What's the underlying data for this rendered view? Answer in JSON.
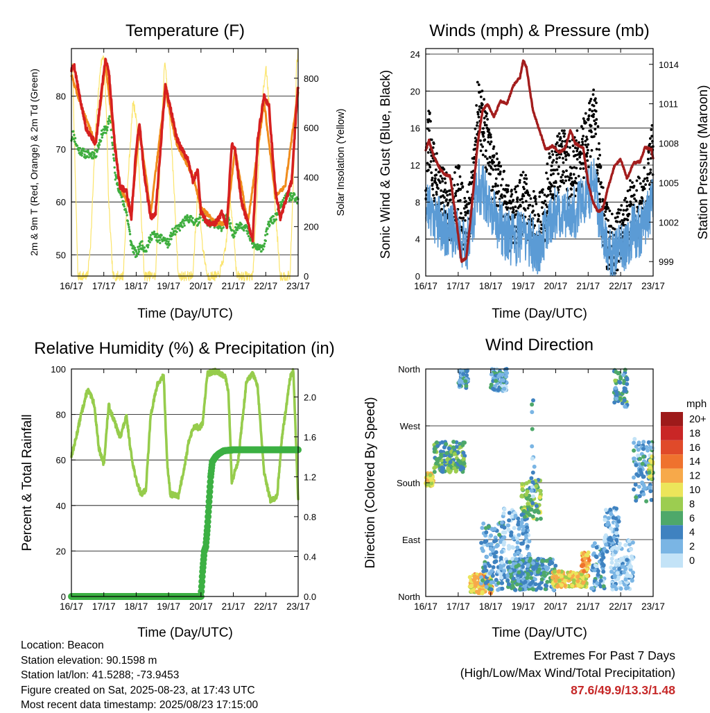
{
  "location": "Location: Beacon",
  "elevation": "Station elevation: 90.1598 m",
  "latlon": "Station lat/lon: 41.5288; -73.9453",
  "created": "Figure created on Sat, 2025-08-23, at 17:43 UTC",
  "recent": "Most recent data timestamp: 2025/08/23 17:15:00",
  "extremes": {
    "title": "Extremes For Past 7 Days",
    "subtitle": "(High/Low/Max Wind/Total Precipitation)",
    "values": "87.6/49.9/13.3/1.48"
  },
  "colors": {
    "temp2m": "#d62020",
    "temp9m": "#f08c1c",
    "dewpoint": "#3fae3f",
    "solar": "#fbe46a",
    "wind": "#5b9bd5",
    "gust": "#000000",
    "pressure": "#a31d1d",
    "rh": "#96cc4c",
    "precip": "#3cb043"
  },
  "speed_scale": {
    "label": "mph",
    "labels": [
      "20+",
      "18",
      "16",
      "14",
      "12",
      "10",
      "8",
      "6",
      "4",
      "2",
      "0"
    ],
    "colors": [
      "#9e1a1a",
      "#c92626",
      "#e04a2a",
      "#ef722e",
      "#f7a94a",
      "#ece55a",
      "#9ccd50",
      "#4ea86a",
      "#3f82c0",
      "#7ab5e4",
      "#c3e3f7"
    ]
  },
  "chart_data": [
    {
      "type": "line",
      "title": "Temperature (F)",
      "xlabel": "Time (Day/UTC)",
      "ylabel": "2m & 9m T (Red, Orange) & 2m Td (Green)",
      "y2label": "Solar Insolation (Yellow)",
      "x_ticks": [
        "16/17",
        "17/17",
        "18/17",
        "19/17",
        "20/17",
        "21/17",
        "22/17",
        "23/17"
      ],
      "xlim": [
        0,
        7
      ],
      "ylim": [
        46,
        89
      ],
      "y_ticks": [
        50,
        60,
        70,
        80
      ],
      "y2lim": [
        0,
        920
      ],
      "y2_ticks": [
        0,
        200,
        400,
        600,
        800
      ],
      "grid": true,
      "series": [
        {
          "name": "2m T",
          "x": [
            0,
            0.08,
            0.25,
            0.45,
            0.75,
            0.95,
            1.05,
            1.15,
            1.35,
            1.5,
            1.7,
            1.85,
            2.0,
            2.1,
            2.25,
            2.45,
            2.6,
            2.75,
            2.9,
            3.05,
            3.25,
            3.4,
            3.6,
            3.75,
            3.9,
            4.0,
            4.2,
            4.45,
            4.65,
            4.8,
            4.95,
            5.05,
            5.25,
            5.45,
            5.6,
            5.75,
            5.95,
            6.1,
            6.3,
            6.45,
            6.6,
            6.8,
            6.95,
            7.0
          ],
          "y": [
            85,
            86,
            80,
            74,
            71,
            82,
            87,
            85,
            70,
            63,
            62,
            57,
            70,
            75,
            65,
            57,
            58,
            70,
            82,
            78,
            72,
            70,
            68,
            64,
            66,
            58,
            56,
            56,
            58,
            55,
            71,
            70,
            60,
            56,
            53,
            72,
            80,
            78,
            62,
            57,
            60,
            64,
            78,
            82
          ]
        },
        {
          "name": "9m T",
          "x": [
            0,
            0.25,
            0.75,
            1.05,
            1.5,
            1.85,
            2.1,
            2.45,
            2.9,
            3.25,
            3.75,
            4.0,
            4.45,
            4.8,
            5.05,
            5.45,
            5.95,
            6.3,
            6.6,
            7.0
          ],
          "y": [
            84,
            79,
            71,
            86,
            63,
            58,
            74,
            58,
            81,
            71,
            65,
            59,
            56,
            56,
            70,
            56,
            79,
            61,
            63,
            81
          ]
        },
        {
          "name": "2m Td",
          "x": [
            0,
            0.05,
            0.2,
            0.45,
            0.75,
            0.95,
            1.1,
            1.2,
            1.35,
            1.55,
            1.7,
            1.85,
            2.0,
            2.15,
            2.3,
            2.5,
            2.7,
            2.85,
            3.0,
            3.1,
            3.3,
            3.6,
            3.9,
            4.0,
            4.2,
            4.4,
            4.6,
            4.8,
            5.0,
            5.2,
            5.4,
            5.6,
            5.8,
            5.95,
            6.1,
            6.3,
            6.45,
            6.65,
            6.85,
            7.0
          ],
          "y": [
            72,
            73,
            70,
            69,
            69,
            73,
            74,
            76,
            65,
            61,
            58,
            52,
            50,
            52,
            51,
            54,
            53,
            53,
            52,
            54,
            55,
            57,
            56,
            58,
            56,
            56,
            55,
            57,
            54,
            56,
            55,
            52,
            51,
            52,
            56,
            57,
            59,
            61,
            61,
            60
          ]
        },
        {
          "name": "Solar",
          "axis": "y2",
          "x": [
            0,
            0.04,
            0.1,
            0.2,
            0.35,
            0.5,
            0.6,
            0.75,
            0.9,
            1.0,
            1.08,
            1.15,
            1.28,
            1.45,
            1.6,
            1.75,
            1.9,
            2.0,
            2.1,
            2.25,
            2.45,
            2.6,
            2.75,
            2.88,
            3.0,
            3.15,
            3.3,
            3.6,
            3.75,
            3.9,
            4.05,
            4.2,
            4.35,
            4.55,
            4.75,
            4.9,
            5.0,
            5.1,
            5.25,
            5.45,
            5.6,
            5.72,
            5.85,
            6.0,
            6.1,
            6.25,
            6.45,
            6.6,
            6.75,
            6.88,
            6.95,
            7.0
          ],
          "y": [
            820,
            850,
            500,
            0,
            0,
            0,
            150,
            600,
            850,
            900,
            650,
            300,
            0,
            0,
            0,
            400,
            700,
            650,
            400,
            0,
            0,
            0,
            500,
            880,
            700,
            400,
            0,
            0,
            0,
            350,
            120,
            0,
            0,
            0,
            100,
            300,
            200,
            0,
            0,
            0,
            0,
            300,
            650,
            850,
            700,
            350,
            0,
            0,
            0,
            500,
            850,
            900
          ]
        }
      ]
    },
    {
      "type": "line",
      "title": "Winds (mph) & Pressure (mb)",
      "xlabel": "Time (Day/UTC)",
      "ylabel": "Sonic Wind & Gust (Blue, Black)",
      "y2label": "Station Pressure (Maroon)",
      "x_ticks": [
        "16/17",
        "17/17",
        "18/17",
        "19/17",
        "20/17",
        "21/17",
        "22/17",
        "23/17"
      ],
      "xlim": [
        0,
        7
      ],
      "ylim": [
        0,
        24.6
      ],
      "y_ticks": [
        0,
        4,
        8,
        12,
        16,
        20,
        24
      ],
      "y2lim": [
        997.9,
        1015.2
      ],
      "y2_ticks": [
        999,
        1002,
        1005,
        1008,
        1011,
        1014
      ],
      "grid": true,
      "series": [
        {
          "name": "Gust",
          "x": [
            0,
            0.1,
            0.2,
            0.4,
            0.6,
            0.8,
            1.0,
            1.2,
            1.4,
            1.6,
            1.8,
            2.0,
            2.2,
            2.4,
            2.6,
            2.8,
            3.0,
            3.2,
            3.4,
            3.6,
            3.8,
            4.0,
            4.2,
            4.4,
            4.6,
            4.8,
            5.0,
            5.2,
            5.4,
            5.6,
            5.8,
            6.0,
            6.2,
            6.4,
            6.6,
            6.8,
            7.0
          ],
          "y": [
            11,
            15,
            12,
            9,
            8,
            7,
            9,
            5,
            8,
            18,
            16,
            12,
            10,
            8,
            6,
            7,
            8,
            7,
            5,
            6,
            10,
            12,
            13,
            11,
            12,
            13,
            15,
            18,
            8,
            4,
            3,
            5,
            6,
            8,
            7,
            9,
            14
          ]
        },
        {
          "name": "Wind",
          "x": [
            0,
            0.2,
            0.4,
            0.6,
            0.8,
            1.0,
            1.2,
            1.4,
            1.6,
            1.8,
            2.0,
            2.2,
            2.4,
            2.6,
            2.8,
            3.0,
            3.2,
            3.4,
            3.6,
            3.8,
            4.0,
            4.2,
            4.4,
            4.6,
            4.8,
            5.0,
            5.2,
            5.4,
            5.6,
            5.8,
            6.0,
            6.2,
            6.4,
            6.6,
            6.8,
            7.0
          ],
          "y": [
            7,
            6,
            5,
            4,
            4,
            4,
            2,
            4,
            9,
            8,
            6,
            5,
            4,
            3,
            3,
            4,
            3,
            2,
            3,
            5,
            6,
            6,
            6,
            6,
            7,
            8,
            9,
            4,
            2,
            1,
            2,
            3,
            4,
            4,
            5,
            8
          ]
        },
        {
          "name": "Pressure",
          "axis": "y2",
          "x": [
            0,
            0.1,
            0.25,
            0.45,
            0.6,
            0.75,
            0.95,
            1.1,
            1.25,
            1.35,
            1.6,
            1.75,
            1.9,
            2.1,
            2.3,
            2.5,
            2.7,
            2.9,
            3.0,
            3.1,
            3.3,
            3.5,
            3.7,
            3.9,
            4.1,
            4.3,
            4.45,
            4.6,
            4.85,
            5.0,
            5.15,
            5.3,
            5.45,
            5.6,
            5.8,
            6.0,
            6.2,
            6.4,
            6.6,
            6.75,
            6.95,
            7.0
          ],
          "y": [
            1007.5,
            1008.2,
            1007.0,
            1006.0,
            1005.6,
            1005.5,
            1002.0,
            999.0,
            999.3,
            1001.5,
            1008.0,
            1010.5,
            1011.0,
            1010.0,
            1011.2,
            1011.0,
            1012.4,
            1013.0,
            1014.3,
            1013.8,
            1010.5,
            1009.0,
            1007.5,
            1007.8,
            1007.3,
            1007.6,
            1009.0,
            1008.0,
            1007.6,
            1005.0,
            1003.5,
            1002.8,
            1003.0,
            1004.5,
            1006.2,
            1006.8,
            1005.3,
            1006.5,
            1006.6,
            1007.7,
            1007.5,
            1006.8
          ]
        }
      ]
    },
    {
      "type": "line",
      "title": "Relative Humidity (%) & Precipitation (in)",
      "xlabel": "Time (Day/UTC)",
      "ylabel": "Percent & Total Rainfall",
      "x_ticks": [
        "16/17",
        "17/17",
        "18/17",
        "19/17",
        "20/17",
        "21/17",
        "22/17",
        "23/17"
      ],
      "xlim": [
        0,
        7
      ],
      "ylim": [
        0,
        100
      ],
      "y_ticks": [
        0,
        20,
        40,
        60,
        80,
        100
      ],
      "y2lim": [
        0,
        2.28
      ],
      "y2_ticks": [
        0.0,
        0.4,
        0.8,
        1.2,
        1.6,
        2.0
      ],
      "grid": true,
      "series": [
        {
          "name": "RH",
          "x": [
            0,
            0.1,
            0.3,
            0.5,
            0.7,
            0.85,
            1.0,
            1.15,
            1.3,
            1.5,
            1.7,
            1.85,
            2.0,
            2.15,
            2.3,
            2.45,
            2.65,
            2.85,
            2.95,
            3.05,
            3.3,
            3.5,
            3.65,
            3.8,
            3.95,
            4.05,
            4.2,
            4.45,
            4.6,
            4.75,
            4.85,
            4.95,
            5.15,
            5.4,
            5.6,
            5.75,
            5.95,
            6.15,
            6.35,
            6.5,
            6.6,
            6.75,
            6.85,
            6.93,
            7.0
          ],
          "y": [
            62,
            67,
            80,
            91,
            85,
            65,
            58,
            84,
            78,
            70,
            79,
            62,
            51,
            45,
            47,
            80,
            93,
            97,
            60,
            45,
            44,
            58,
            70,
            75,
            74,
            76,
            98,
            99,
            98,
            97,
            90,
            50,
            60,
            94,
            98,
            92,
            54,
            42,
            44,
            70,
            80,
            96,
            99,
            70,
            42
          ]
        },
        {
          "name": "Precipitation",
          "axis": "y2",
          "x": [
            0,
            0.8,
            1.6,
            2.4,
            3.2,
            4.0,
            4.05,
            4.1,
            4.15,
            4.2,
            4.25,
            4.3,
            4.35,
            4.45,
            4.55,
            4.7,
            5.0,
            5.5,
            6.0,
            6.5,
            7.0
          ],
          "y": [
            0,
            0,
            0,
            0,
            0,
            0,
            0.25,
            0.45,
            0.5,
            0.7,
            0.95,
            1.2,
            1.35,
            1.4,
            1.43,
            1.46,
            1.47,
            1.47,
            1.47,
            1.47,
            1.47
          ]
        }
      ]
    },
    {
      "type": "scatter",
      "title": "Wind Direction",
      "xlabel": "Time (Day/UTC)",
      "ylabel": "Direction (Colored By Speed)",
      "x_ticks": [
        "16/17",
        "17/17",
        "18/17",
        "19/17",
        "20/17",
        "21/17",
        "22/17",
        "23/17"
      ],
      "xlim": [
        0,
        7
      ],
      "y_ticks": [
        "North",
        "East",
        "South",
        "West",
        "North"
      ],
      "ylim": [
        0,
        360
      ],
      "legend": "right",
      "clusters": [
        {
          "x": [
            0,
            0.25
          ],
          "y": [
            175,
            195
          ],
          "speed": 10
        },
        {
          "x": [
            0.25,
            1.2
          ],
          "y": [
            195,
            245
          ],
          "speed": 6
        },
        {
          "x": [
            1.0,
            1.3
          ],
          "y": [
            330,
            360
          ],
          "speed": 3
        },
        {
          "x": [
            1.35,
            2.05
          ],
          "y": [
            5,
            35
          ],
          "speed": 11
        },
        {
          "x": [
            1.7,
            2.4
          ],
          "y": [
            10,
            120
          ],
          "speed": 3
        },
        {
          "x": [
            2.0,
            2.5
          ],
          "y": [
            325,
            360
          ],
          "speed": 3
        },
        {
          "x": [
            2.3,
            3.2
          ],
          "y": [
            20,
            140
          ],
          "speed": 2
        },
        {
          "x": [
            2.95,
            3.55
          ],
          "y": [
            120,
            185
          ],
          "speed": 7
        },
        {
          "x": [
            2.5,
            4.0
          ],
          "y": [
            10,
            60
          ],
          "speed": 4
        },
        {
          "x": [
            3.25,
            3.35
          ],
          "y": [
            150,
            320
          ],
          "speed": 3
        },
        {
          "x": [
            3.9,
            4.95
          ],
          "y": [
            15,
            40
          ],
          "speed": 10
        },
        {
          "x": [
            4.8,
            5.05
          ],
          "y": [
            30,
            70
          ],
          "speed": 12
        },
        {
          "x": [
            5.1,
            5.5
          ],
          "y": [
            10,
            85
          ],
          "speed": 3
        },
        {
          "x": [
            5.5,
            5.95
          ],
          "y": [
            60,
            140
          ],
          "speed": 2
        },
        {
          "x": [
            5.8,
            6.2
          ],
          "y": [
            300,
            360
          ],
          "speed": 5
        },
        {
          "x": [
            5.7,
            6.4
          ],
          "y": [
            10,
            90
          ],
          "speed": 1
        },
        {
          "x": [
            6.4,
            7.0
          ],
          "y": [
            150,
            250
          ],
          "speed": 3
        },
        {
          "x": [
            6.85,
            7.0
          ],
          "y": [
            185,
            225
          ],
          "speed": 9
        }
      ]
    }
  ]
}
